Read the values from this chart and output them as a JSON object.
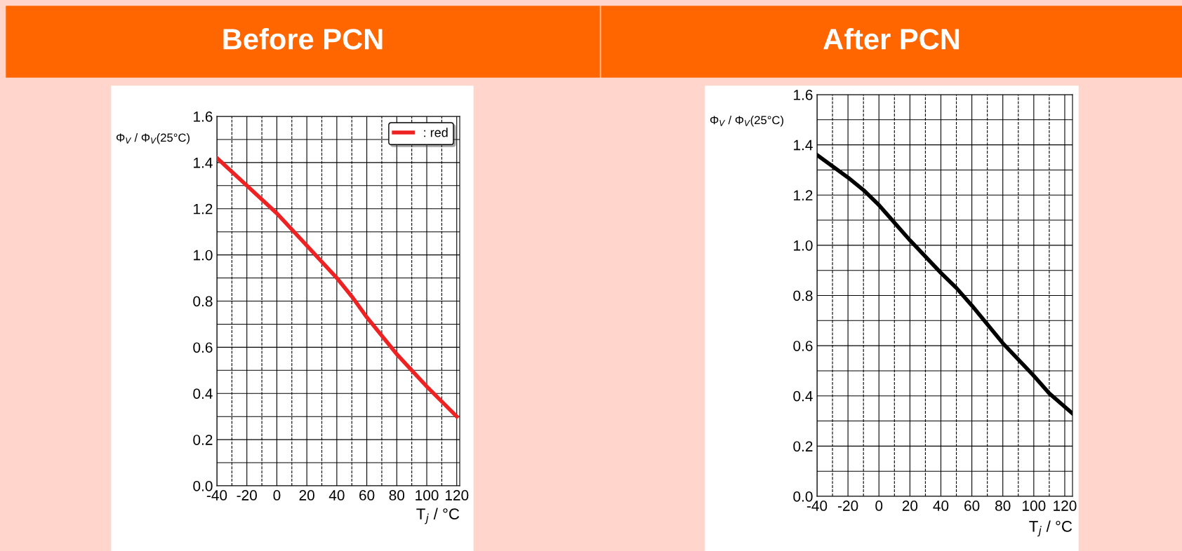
{
  "chart_data": [
    {
      "type": "line",
      "title": "Before PCN",
      "ylabel": "Φ$_{V}$ / Φ$_{V}$(25°C)",
      "xlabel": "T$_{j}$ / °C",
      "x": [
        -40,
        -20,
        0,
        20,
        40,
        50,
        60,
        80,
        90,
        100,
        120
      ],
      "series": [
        {
          "name": ": red",
          "color": "#ee2222",
          "values": [
            1.42,
            1.3,
            1.18,
            1.04,
            0.9,
            0.82,
            0.73,
            0.57,
            0.5,
            0.43,
            0.3
          ]
        }
      ],
      "xlim": [
        -40,
        122
      ],
      "ylim": [
        0,
        1.6
      ],
      "xticks": [
        -40,
        {
          "value": -30,
          "label": null
        },
        -20,
        {
          "value": -10,
          "label": null
        },
        0,
        {
          "value": 10,
          "label": null
        },
        20,
        {
          "value": 30,
          "label": null
        },
        40,
        {
          "value": 50,
          "label": null
        },
        60,
        {
          "value": 70,
          "label": null
        },
        80,
        {
          "value": 90,
          "label": null
        },
        100,
        {
          "value": 110,
          "label": null
        },
        120
      ],
      "yticks": [
        {
          "value": 0,
          "label": "0.0"
        },
        {
          "value": 0.1,
          "label": null
        },
        0.2,
        {
          "value": 0.3,
          "label": null
        },
        0.4,
        {
          "value": 0.5,
          "label": null
        },
        0.6,
        {
          "value": 0.7,
          "label": null
        },
        0.8,
        {
          "value": 0.9,
          "label": null
        },
        {
          "value": 1,
          "label": "1.0"
        },
        {
          "value": 1.1,
          "label": null
        },
        1.2,
        {
          "value": 1.3,
          "label": null
        },
        1.4,
        {
          "value": 1.5,
          "label": null
        },
        1.6
      ],
      "grid": true,
      "legend": "top right",
      "line_style": "solid",
      "marker": "none"
    },
    {
      "type": "line",
      "title": "After PCN",
      "ylabel": "Φ$_{V}$ / Φ$_{V}$(25°C)",
      "xlabel": "T$_{j}$ / °C",
      "x": [
        -40,
        -20,
        -10,
        0,
        20,
        40,
        50,
        60,
        80,
        100,
        110,
        125
      ],
      "series": [
        {
          "color": "#000000",
          "values": [
            1.36,
            1.27,
            1.22,
            1.16,
            1.02,
            0.89,
            0.83,
            0.76,
            0.61,
            0.48,
            0.41,
            0.33
          ]
        }
      ],
      "xlim": [
        -40,
        125
      ],
      "ylim": [
        0,
        1.6
      ],
      "xticks": [
        -40,
        {
          "value": -30,
          "label": null
        },
        -20,
        {
          "value": -10,
          "label": null
        },
        0,
        {
          "value": 10,
          "label": null
        },
        20,
        {
          "value": 30,
          "label": null
        },
        40,
        {
          "value": 50,
          "label": null
        },
        60,
        {
          "value": 70,
          "label": null
        },
        80,
        {
          "value": 90,
          "label": null
        },
        100,
        {
          "value": 110,
          "label": null
        },
        120
      ],
      "yticks": [
        {
          "value": 0,
          "label": "0.0"
        },
        {
          "value": 0.1,
          "label": null
        },
        0.2,
        {
          "value": 0.3,
          "label": null
        },
        0.4,
        {
          "value": 0.5,
          "label": null
        },
        0.6,
        {
          "value": 0.7,
          "label": null
        },
        0.8,
        {
          "value": 0.9,
          "label": null
        },
        {
          "value": 1,
          "label": "1.0"
        },
        {
          "value": 1.1,
          "label": null
        },
        1.2,
        {
          "value": 1.3,
          "label": null
        },
        1.4,
        {
          "value": 1.5,
          "label": null
        },
        1.6
      ],
      "grid": true,
      "line_style": "solid",
      "marker": "none"
    }
  ]
}
